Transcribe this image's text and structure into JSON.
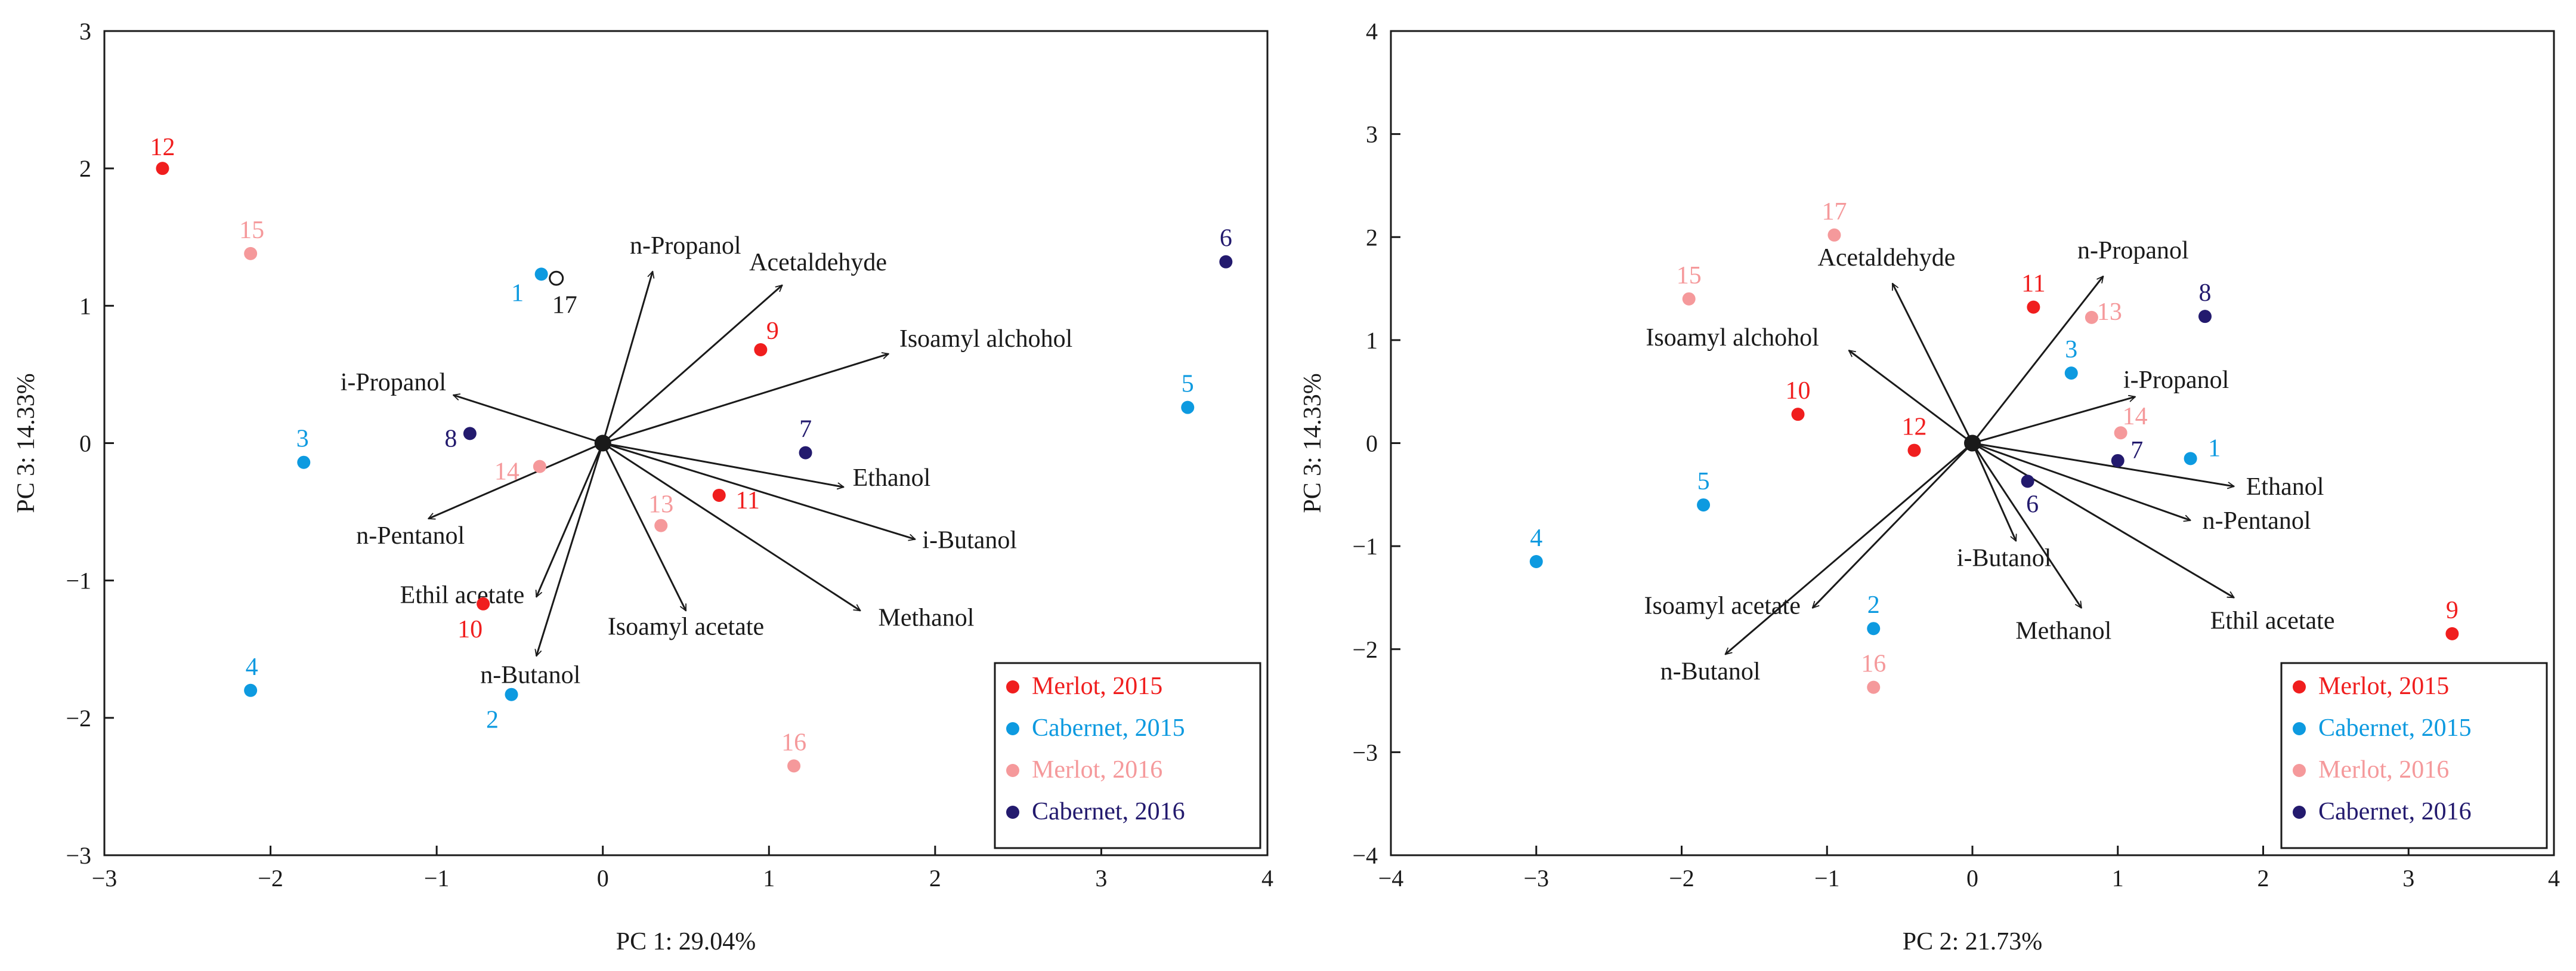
{
  "colors": {
    "merlot_2015": "#f01e1e",
    "cabernet_2015": "#0d9ae0",
    "merlot_2016": "#f5999b",
    "cabernet_2016": "#231a6e",
    "axis": "#1a1a1a"
  },
  "legend": [
    {
      "key": "merlot_2015",
      "label": "Merlot, 2015"
    },
    {
      "key": "cabernet_2015",
      "label": "Cabernet, 2015"
    },
    {
      "key": "merlot_2016",
      "label": "Merlot, 2016"
    },
    {
      "key": "cabernet_2016",
      "label": "Cabernet, 2016"
    }
  ],
  "chart_data": [
    {
      "type": "scatter",
      "title": "",
      "xlabel": "PC 1: 29.04%",
      "ylabel": "PC 3: 14.33%",
      "xlim": [
        -3,
        4
      ],
      "ylim": [
        -3,
        3
      ],
      "xticks": [
        -3,
        -2,
        -1,
        0,
        1,
        2,
        3,
        4
      ],
      "yticks": [
        -3,
        -2,
        -1,
        0,
        1,
        2,
        3
      ],
      "legend_position": "bottom-right",
      "points": [
        {
          "label": "12",
          "group": "merlot_2015",
          "x": -2.65,
          "y": 2.0
        },
        {
          "label": "9",
          "group": "merlot_2015",
          "x": 0.95,
          "y": 0.68
        },
        {
          "label": "11",
          "group": "merlot_2015",
          "x": 0.7,
          "y": -0.38
        },
        {
          "label": "10",
          "group": "merlot_2015",
          "x": -0.72,
          "y": -1.17
        },
        {
          "label": "1",
          "group": "cabernet_2015",
          "x": -0.37,
          "y": 1.23
        },
        {
          "label": "3",
          "group": "cabernet_2015",
          "x": -1.8,
          "y": -0.14
        },
        {
          "label": "4",
          "group": "cabernet_2015",
          "x": -2.12,
          "y": -1.8
        },
        {
          "label": "2",
          "group": "cabernet_2015",
          "x": -0.55,
          "y": -1.83
        },
        {
          "label": "5",
          "group": "cabernet_2015",
          "x": 3.52,
          "y": 0.26
        },
        {
          "label": "15",
          "group": "merlot_2016",
          "x": -2.12,
          "y": 1.38
        },
        {
          "label": "14",
          "group": "merlot_2016",
          "x": -0.38,
          "y": -0.17
        },
        {
          "label": "13",
          "group": "merlot_2016",
          "x": 0.35,
          "y": -0.6
        },
        {
          "label": "16",
          "group": "merlot_2016",
          "x": 1.15,
          "y": -2.35
        },
        {
          "label": "6",
          "group": "cabernet_2016",
          "x": 3.75,
          "y": 1.32
        },
        {
          "label": "8",
          "group": "cabernet_2016",
          "x": -0.8,
          "y": 0.07
        },
        {
          "label": "7",
          "group": "cabernet_2016",
          "x": 1.22,
          "y": -0.07
        },
        {
          "label": "17",
          "group": "open",
          "x": -0.28,
          "y": 1.2
        }
      ],
      "vectors": [
        {
          "label": "n-Propanol",
          "x": 0.3,
          "y": 1.25
        },
        {
          "label": "Acetaldehyde",
          "x": 1.08,
          "y": 1.15
        },
        {
          "label": "Isoamyl alchohol",
          "x": 1.72,
          "y": 0.65
        },
        {
          "label": "i-Propanol",
          "x": -0.9,
          "y": 0.35
        },
        {
          "label": "Ethanol",
          "x": 1.45,
          "y": -0.32
        },
        {
          "label": "i-Butanol",
          "x": 1.88,
          "y": -0.7
        },
        {
          "label": "Methanol",
          "x": 1.55,
          "y": -1.22
        },
        {
          "label": "Isoamyl acetate",
          "x": 0.5,
          "y": -1.22
        },
        {
          "label": "n-Butanol",
          "x": -0.4,
          "y": -1.55
        },
        {
          "label": "Ethil acetate",
          "x": -0.4,
          "y": -1.12
        },
        {
          "label": "n-Pentanol",
          "x": -1.05,
          "y": -0.55
        }
      ]
    },
    {
      "type": "scatter",
      "title": "",
      "xlabel": "PC 2: 21.73%",
      "ylabel": "PC 3: 14.33%",
      "xlim": [
        -4,
        4
      ],
      "ylim": [
        -4,
        4
      ],
      "xticks": [
        -4,
        -3,
        -2,
        -1,
        0,
        1,
        2,
        3,
        4
      ],
      "yticks": [
        -4,
        -3,
        -2,
        -1,
        0,
        1,
        2,
        3,
        4
      ],
      "legend_position": "bottom-right",
      "points": [
        {
          "label": "11",
          "group": "merlot_2015",
          "x": 0.42,
          "y": 1.32
        },
        {
          "label": "10",
          "group": "merlot_2015",
          "x": -1.2,
          "y": 0.28
        },
        {
          "label": "12",
          "group": "merlot_2015",
          "x": -0.4,
          "y": -0.07
        },
        {
          "label": "9",
          "group": "merlot_2015",
          "x": 3.3,
          "y": -1.85
        },
        {
          "label": "3",
          "group": "cabernet_2015",
          "x": 0.68,
          "y": 0.68
        },
        {
          "label": "1",
          "group": "cabernet_2015",
          "x": 1.5,
          "y": -0.15
        },
        {
          "label": "5",
          "group": "cabernet_2015",
          "x": -1.85,
          "y": -0.6
        },
        {
          "label": "4",
          "group": "cabernet_2015",
          "x": -3.0,
          "y": -1.15
        },
        {
          "label": "2",
          "group": "cabernet_2015",
          "x": -0.68,
          "y": -1.8
        },
        {
          "label": "17",
          "group": "merlot_2016",
          "x": -0.95,
          "y": 2.02
        },
        {
          "label": "15",
          "group": "merlot_2016",
          "x": -1.95,
          "y": 1.4
        },
        {
          "label": "13",
          "group": "merlot_2016",
          "x": 0.82,
          "y": 1.22
        },
        {
          "label": "14",
          "group": "merlot_2016",
          "x": 1.02,
          "y": 0.1
        },
        {
          "label": "16",
          "group": "merlot_2016",
          "x": -0.68,
          "y": -2.37
        },
        {
          "label": "8",
          "group": "cabernet_2016",
          "x": 1.6,
          "y": 1.23
        },
        {
          "label": "7",
          "group": "cabernet_2016",
          "x": 1.0,
          "y": -0.17
        },
        {
          "label": "6",
          "group": "cabernet_2016",
          "x": 0.38,
          "y": -0.37
        }
      ],
      "vectors": [
        {
          "label": "n-Propanol",
          "x": 0.9,
          "y": 1.62
        },
        {
          "label": "Acetaldehyde",
          "x": -0.55,
          "y": 1.55
        },
        {
          "label": "Isoamyl alchohol",
          "x": -0.85,
          "y": 0.9
        },
        {
          "label": "i-Propanol",
          "x": 1.12,
          "y": 0.45
        },
        {
          "label": "Ethanol",
          "x": 1.8,
          "y": -0.42
        },
        {
          "label": "n-Pentanol",
          "x": 1.5,
          "y": -0.75
        },
        {
          "label": "Ethil acetate",
          "x": 1.8,
          "y": -1.5
        },
        {
          "label": "Methanol",
          "x": 0.75,
          "y": -1.6
        },
        {
          "label": "i-Butanol",
          "x": 0.3,
          "y": -0.95
        },
        {
          "label": "Isoamyl acetate",
          "x": -1.1,
          "y": -1.6
        },
        {
          "label": "n-Butanol",
          "x": -1.7,
          "y": -2.05
        }
      ]
    }
  ]
}
